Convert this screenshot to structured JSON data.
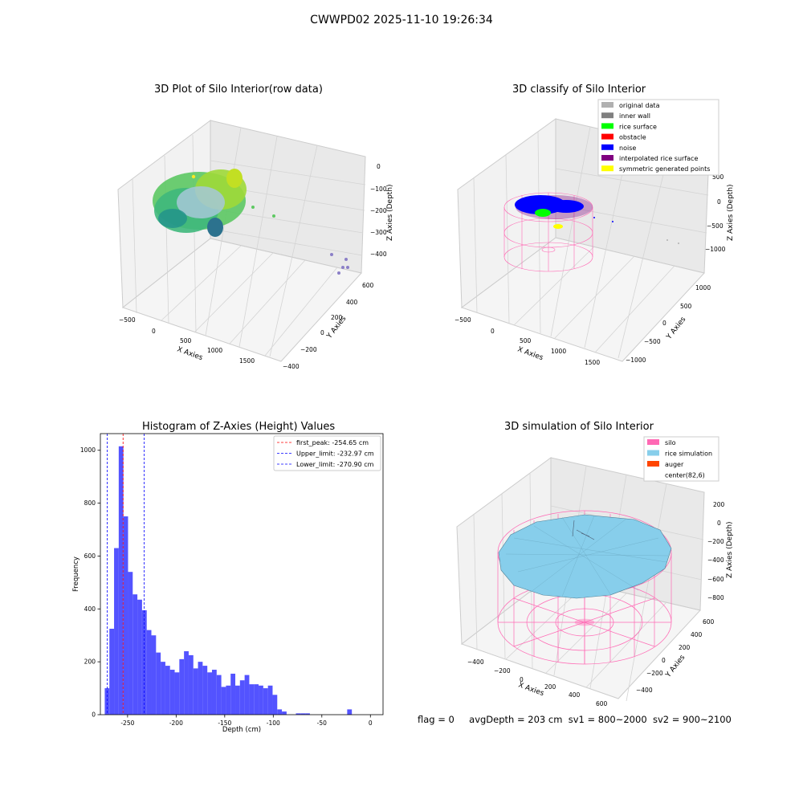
{
  "suptitle": "CWWPD02 2025-11-10 19:26:34",
  "colors": {
    "hist_bar": "#4a4aff",
    "first_peak": "#ff0000",
    "limit": "#0000ff",
    "silo": "#ff69b4",
    "rice": "#87ceeb",
    "auger": "#ff4500"
  },
  "plot_raw": {
    "title": "3D Plot of Silo Interior(row data)",
    "x_label": "X Axies",
    "y_label": "Y Axies",
    "z_label": "Z Axies (Depth)",
    "x_ticks": [
      "−500",
      "0",
      "500",
      "1000",
      "1500"
    ],
    "y_ticks": [
      "600",
      "400",
      "200",
      "0",
      "−200",
      "−400"
    ],
    "z_ticks": [
      "0",
      "−100",
      "−200",
      "−300",
      "−400"
    ]
  },
  "plot_classify": {
    "title": "3D classify of Silo Interior",
    "x_label": "X Axies",
    "y_label": "Y Axies",
    "z_label": "Z Axies (Depth)",
    "x_ticks": [
      "−500",
      "0",
      "500",
      "1000",
      "1500"
    ],
    "y_ticks": [
      "1000",
      "500",
      "0",
      "−500",
      "−1000"
    ],
    "z_ticks": [
      "500",
      "0",
      "−500",
      "−1000"
    ],
    "legend": [
      {
        "label": "original data",
        "color": "#b0b0b0"
      },
      {
        "label": "inner wall",
        "color": "#808080"
      },
      {
        "label": "rice surface",
        "color": "#00ff00"
      },
      {
        "label": "obstacle",
        "color": "#ff0000"
      },
      {
        "label": "noise",
        "color": "#0000ff"
      },
      {
        "label": "interpolated rice surface",
        "color": "#800080"
      },
      {
        "label": "symmetric generated points",
        "color": "#ffff00"
      }
    ]
  },
  "plot_sim": {
    "title": "3D simulation of Silo Interior",
    "x_label": "X Axies",
    "y_label": "Y Axies",
    "z_label": "Z Axies (Depth)",
    "x_ticks": [
      "−400",
      "−200",
      "0",
      "200",
      "400",
      "600"
    ],
    "y_ticks": [
      "600",
      "400",
      "200",
      "0",
      "−200",
      "−400"
    ],
    "z_ticks": [
      "200",
      "0",
      "−200",
      "−400",
      "−600",
      "−800"
    ],
    "legend": [
      {
        "label": "silo",
        "color": "#ff69b4"
      },
      {
        "label": "rice simulation",
        "color": "#87ceeb"
      },
      {
        "label": "auger",
        "color": "#ff4500"
      },
      {
        "label": "center(82,6)",
        "color": null
      }
    ]
  },
  "status": {
    "flag": "flag = 0",
    "avg": "avgDepth = 203 cm",
    "sv1": "sv1 = 800~2000",
    "sv2": "sv2 = 900~2100"
  },
  "chart_data": {
    "type": "bar",
    "title": "Histogram of Z-Axies (Height) Values",
    "xlabel": "Depth (cm)",
    "ylabel": "Frequency",
    "xlim": [
      -278,
      13
    ],
    "ylim": [
      0,
      1063
    ],
    "x_ticks": [
      -250,
      -200,
      -150,
      -100,
      -50,
      0
    ],
    "y_ticks": [
      0,
      200,
      400,
      600,
      800,
      1000
    ],
    "bin_start": -273.5,
    "bin_width": 4.8,
    "values": [
      100,
      325,
      630,
      1015,
      750,
      540,
      455,
      435,
      395,
      320,
      300,
      235,
      200,
      185,
      170,
      160,
      210,
      240,
      225,
      175,
      200,
      185,
      160,
      170,
      150,
      105,
      110,
      155,
      110,
      130,
      150,
      115,
      115,
      110,
      100,
      110,
      75,
      20,
      12,
      0,
      0,
      5,
      5,
      5,
      0,
      0,
      0,
      0,
      0,
      0,
      0,
      0,
      20,
      0
    ],
    "lines": [
      {
        "label": "first_peak: -254.65 cm",
        "x": -254.65,
        "color": "#ff0000"
      },
      {
        "label": "Upper_limit: -232.97 cm",
        "x": -232.97,
        "color": "#0000ff"
      },
      {
        "label": "Lower_limit: -270.90 cm",
        "x": -270.9,
        "color": "#0000ff"
      }
    ],
    "legend_position": "upper right"
  }
}
